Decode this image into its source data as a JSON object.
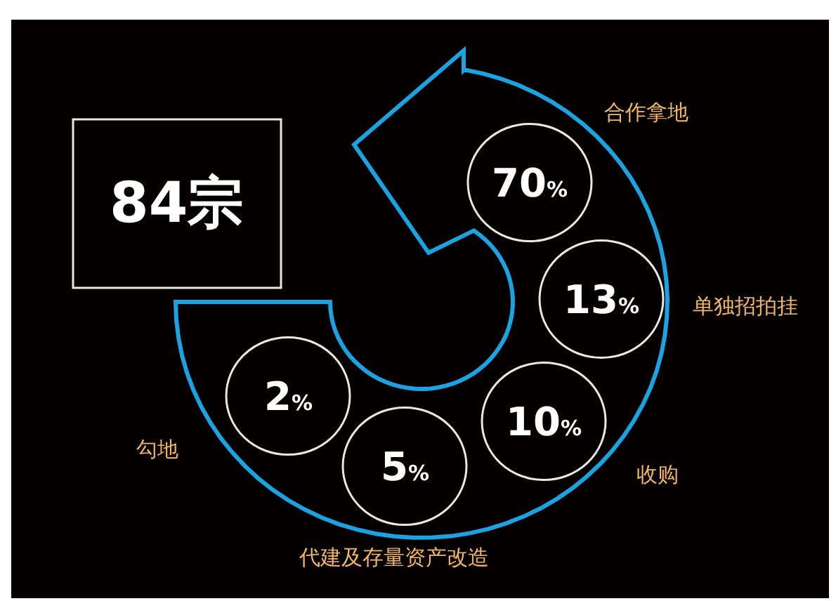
{
  "chart_data": {
    "type": "other",
    "categories": [
      "合作拿地",
      "单独招拍挂",
      "收购",
      "代建及存量资产改造",
      "勾地"
    ],
    "values": [
      70,
      13,
      10,
      5,
      2
    ],
    "value_labels": [
      "70%",
      "13%",
      "10%",
      "5%",
      "2%"
    ],
    "annotations": [
      "84宗"
    ]
  }
}
